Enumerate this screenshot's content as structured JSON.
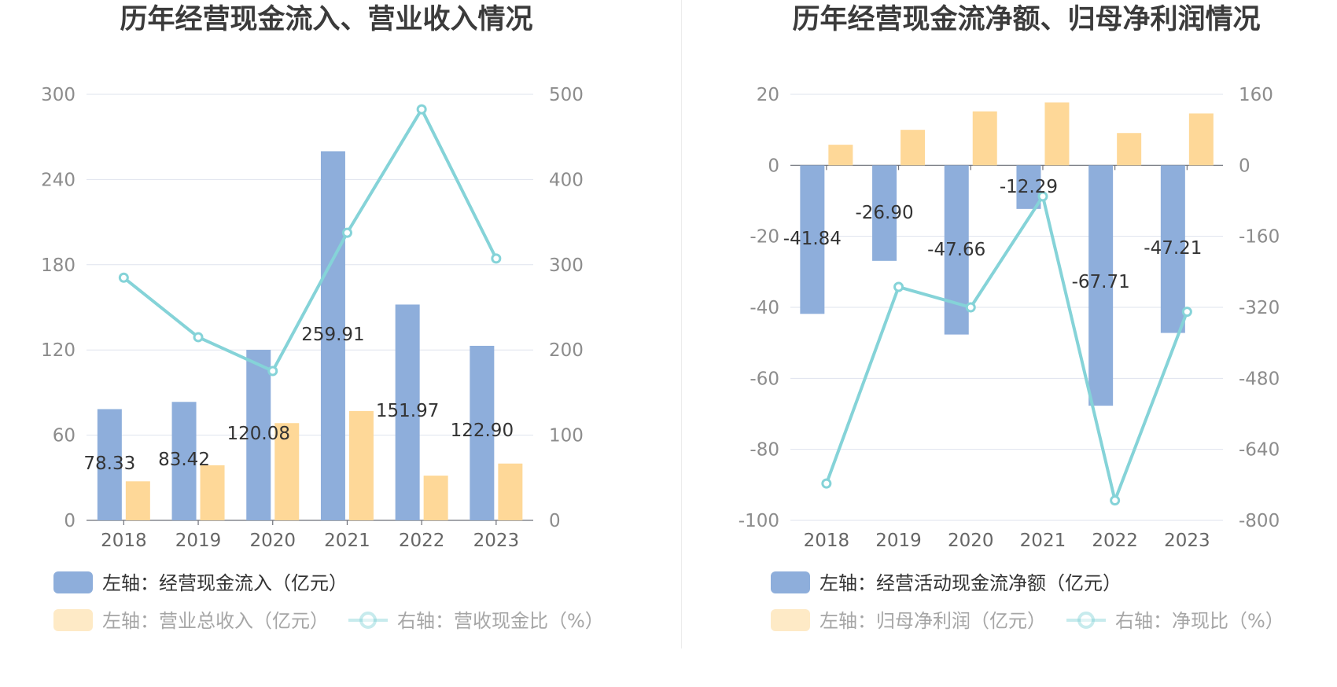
{
  "chart_data": [
    {
      "type": "bar",
      "title": "历年经营现金流入、营业收入情况",
      "categories": [
        "2018",
        "2019",
        "2020",
        "2021",
        "2022",
        "2023"
      ],
      "y_left": {
        "ticks": [
          "0",
          "60",
          "120",
          "180",
          "240",
          "300"
        ],
        "range": [
          0,
          300
        ]
      },
      "y_right": {
        "ticks": [
          "0",
          "100",
          "200",
          "300",
          "400",
          "500"
        ],
        "range": [
          0,
          500
        ]
      },
      "series": [
        {
          "name": "经营现金流入",
          "axis": "left",
          "kind": "bar",
          "color": "#8eaedb",
          "values": [
            78.33,
            83.42,
            120.08,
            259.91,
            151.97,
            122.9
          ],
          "labels": [
            "78.33",
            "83.42",
            "120.08",
            "259.91",
            "151.97",
            "122.90"
          ]
        },
        {
          "name": "营业总收入",
          "axis": "left",
          "kind": "bar",
          "color": "#fed898",
          "values": [
            27.5,
            38.8,
            68.5,
            77.0,
            31.5,
            40.0
          ]
        },
        {
          "name": "营收现金比",
          "axis": "right",
          "kind": "line",
          "color": "#85d3d8",
          "values": [
            284.8,
            215.0,
            175.3,
            337.5,
            482.4,
            307.3
          ]
        }
      ],
      "legend": [
        {
          "label": "左轴：经营现金流入（亿元）",
          "kind": "bar",
          "color": "#8eaedb",
          "active": true
        },
        {
          "label": "左轴：营业总收入（亿元）",
          "kind": "bar",
          "color": "#fed898",
          "active": false
        },
        {
          "label": "右轴：营收现金比（%）",
          "kind": "line",
          "color": "#85d3d8",
          "active": false
        }
      ]
    },
    {
      "type": "bar",
      "title": "历年经营现金流净额、归母净利润情况",
      "categories": [
        "2018",
        "2019",
        "2020",
        "2021",
        "2022",
        "2023"
      ],
      "y_left": {
        "ticks": [
          "-100",
          "-80",
          "-60",
          "-40",
          "-20",
          "0",
          "20"
        ],
        "range": [
          -100,
          20
        ]
      },
      "y_right": {
        "ticks": [
          "-800",
          "-640",
          "-480",
          "-320",
          "-160",
          "0",
          "160"
        ],
        "range": [
          -800,
          160
        ]
      },
      "series": [
        {
          "name": "经营活动现金流净额",
          "axis": "left",
          "kind": "bar",
          "color": "#8eaedb",
          "values": [
            -41.84,
            -26.9,
            -47.66,
            -12.29,
            -67.71,
            -47.21
          ],
          "labels": [
            "-41.84",
            "-26.90",
            "-47.66",
            "-12.29",
            "-67.71",
            "-47.21"
          ]
        },
        {
          "name": "归母净利润",
          "axis": "left",
          "kind": "bar",
          "color": "#fed898",
          "values": [
            5.8,
            10.0,
            15.2,
            17.7,
            9.1,
            14.6
          ]
        },
        {
          "name": "净现比",
          "axis": "right",
          "kind": "line",
          "color": "#85d3d8",
          "values": [
            -717,
            -274,
            -320,
            -70,
            -755,
            -330
          ]
        }
      ],
      "legend": [
        {
          "label": "左轴：经营活动现金流净额（亿元）",
          "kind": "bar",
          "color": "#8eaedb",
          "active": true
        },
        {
          "label": "左轴：归母净利润（亿元）",
          "kind": "bar",
          "color": "#fed898",
          "active": false
        },
        {
          "label": "右轴：净现比（%）",
          "kind": "line",
          "color": "#85d3d8",
          "active": false
        }
      ]
    }
  ]
}
